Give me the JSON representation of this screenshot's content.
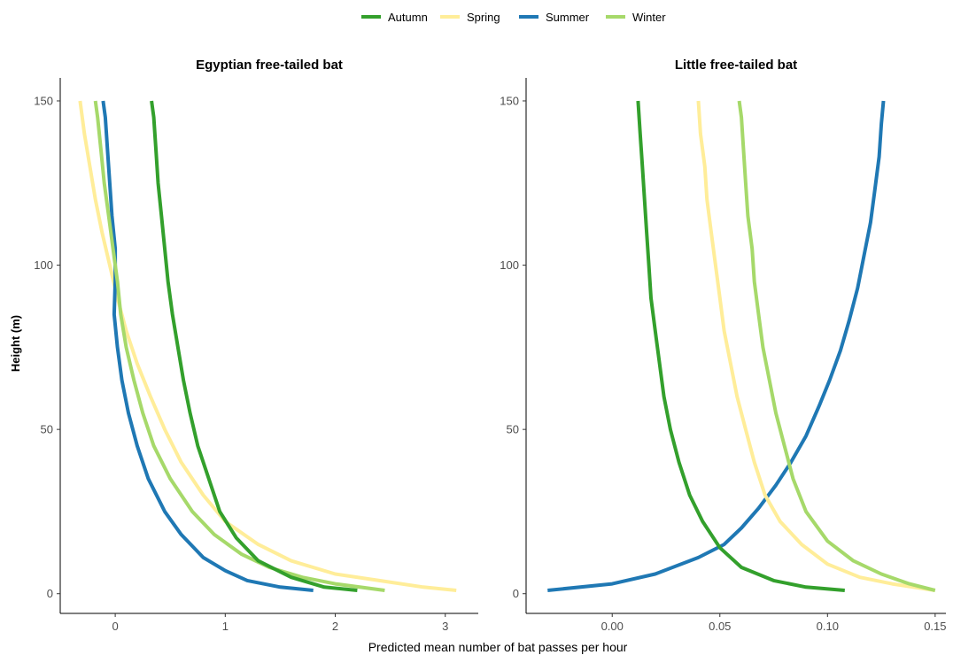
{
  "chart_data": {
    "type": "line",
    "xlabel": "Predicted mean number of bat passes per hour",
    "ylabel": "Height (m)",
    "legend": {
      "position": "top",
      "entries": [
        {
          "name": "Autumn",
          "color": "#33a02c"
        },
        {
          "name": "Spring",
          "color": "#ffed99"
        },
        {
          "name": "Summer",
          "color": "#1f78b4"
        },
        {
          "name": "Winter",
          "color": "#a6d96a"
        }
      ]
    },
    "grid": false,
    "panels": [
      {
        "title": "Egyptian free-tailed bat",
        "xlim": [
          -0.5,
          3.3
        ],
        "ylim": [
          -6,
          157
        ],
        "xticks": [
          0,
          1,
          2,
          3
        ],
        "xtick_labels": [
          "0",
          "1",
          "2",
          "3"
        ],
        "yticks": [
          0,
          50,
          100,
          150
        ],
        "ytick_labels": [
          "0",
          "50",
          "100",
          "150"
        ],
        "series": [
          {
            "name": "Spring",
            "color": "#ffed99",
            "points": [
              [
                3.1,
                1
              ],
              [
                2.8,
                2
              ],
              [
                2.4,
                4
              ],
              [
                2.0,
                6
              ],
              [
                1.6,
                10
              ],
              [
                1.3,
                15
              ],
              [
                1.0,
                22
              ],
              [
                0.8,
                30
              ],
              [
                0.6,
                40
              ],
              [
                0.45,
                50
              ],
              [
                0.32,
                60
              ],
              [
                0.2,
                70
              ],
              [
                0.1,
                80
              ],
              [
                0.02,
                90
              ],
              [
                -0.05,
                100
              ],
              [
                -0.12,
                110
              ],
              [
                -0.18,
                120
              ],
              [
                -0.23,
                130
              ],
              [
                -0.28,
                140
              ],
              [
                -0.32,
                150
              ]
            ]
          },
          {
            "name": "Summer",
            "color": "#1f78b4",
            "points": [
              [
                1.8,
                1
              ],
              [
                1.5,
                2
              ],
              [
                1.2,
                4
              ],
              [
                1.0,
                7
              ],
              [
                0.8,
                11
              ],
              [
                0.6,
                18
              ],
              [
                0.45,
                25
              ],
              [
                0.3,
                35
              ],
              [
                0.2,
                45
              ],
              [
                0.12,
                55
              ],
              [
                0.06,
                65
              ],
              [
                0.02,
                75
              ],
              [
                -0.01,
                85
              ],
              [
                0.0,
                95
              ],
              [
                0.0,
                105
              ],
              [
                -0.03,
                115
              ],
              [
                -0.05,
                125
              ],
              [
                -0.07,
                135
              ],
              [
                -0.09,
                145
              ],
              [
                -0.11,
                150
              ]
            ]
          },
          {
            "name": "Winter",
            "color": "#a6d96a",
            "points": [
              [
                2.45,
                1
              ],
              [
                2.0,
                3
              ],
              [
                1.7,
                5
              ],
              [
                1.4,
                8
              ],
              [
                1.15,
                12
              ],
              [
                0.9,
                18
              ],
              [
                0.7,
                25
              ],
              [
                0.5,
                35
              ],
              [
                0.35,
                45
              ],
              [
                0.25,
                55
              ],
              [
                0.17,
                65
              ],
              [
                0.1,
                75
              ],
              [
                0.05,
                85
              ],
              [
                0.02,
                95
              ],
              [
                -0.02,
                105
              ],
              [
                -0.06,
                115
              ],
              [
                -0.1,
                125
              ],
              [
                -0.13,
                135
              ],
              [
                -0.16,
                145
              ],
              [
                -0.18,
                150
              ]
            ]
          },
          {
            "name": "Autumn",
            "color": "#33a02c",
            "points": [
              [
                2.2,
                1
              ],
              [
                1.9,
                2
              ],
              [
                1.6,
                5
              ],
              [
                1.3,
                10
              ],
              [
                1.1,
                17
              ],
              [
                0.95,
                25
              ],
              [
                0.85,
                35
              ],
              [
                0.75,
                45
              ],
              [
                0.68,
                55
              ],
              [
                0.62,
                65
              ],
              [
                0.57,
                75
              ],
              [
                0.52,
                85
              ],
              [
                0.48,
                95
              ],
              [
                0.45,
                105
              ],
              [
                0.42,
                115
              ],
              [
                0.39,
                125
              ],
              [
                0.37,
                135
              ],
              [
                0.35,
                145
              ],
              [
                0.33,
                150
              ]
            ]
          }
        ]
      },
      {
        "title": "Little free-tailed bat",
        "xlim": [
          -0.04,
          0.155
        ],
        "ylim": [
          -6,
          157
        ],
        "xticks": [
          0.0,
          0.05,
          0.1,
          0.15
        ],
        "xtick_labels": [
          "0.00",
          "0.05",
          "0.10",
          "0.15"
        ],
        "yticks": [
          0,
          50,
          100,
          150
        ],
        "ytick_labels": [
          "0",
          "50",
          "100",
          "150"
        ],
        "series": [
          {
            "name": "Summer",
            "color": "#1f78b4",
            "points": [
              [
                -0.03,
                1
              ],
              [
                0.0,
                3
              ],
              [
                0.02,
                6
              ],
              [
                0.04,
                11
              ],
              [
                0.052,
                15
              ],
              [
                0.06,
                20
              ],
              [
                0.068,
                26
              ],
              [
                0.076,
                33
              ],
              [
                0.083,
                40
              ],
              [
                0.09,
                48
              ],
              [
                0.096,
                57
              ],
              [
                0.101,
                65
              ],
              [
                0.106,
                74
              ],
              [
                0.11,
                83
              ],
              [
                0.114,
                93
              ],
              [
                0.117,
                103
              ],
              [
                0.12,
                113
              ],
              [
                0.122,
                123
              ],
              [
                0.124,
                133
              ],
              [
                0.125,
                143
              ],
              [
                0.126,
                150
              ]
            ]
          },
          {
            "name": "Spring",
            "color": "#ffed99",
            "points": [
              [
                0.15,
                1
              ],
              [
                0.13,
                3
              ],
              [
                0.115,
                5
              ],
              [
                0.1,
                9
              ],
              [
                0.088,
                15
              ],
              [
                0.078,
                22
              ],
              [
                0.071,
                30
              ],
              [
                0.066,
                40
              ],
              [
                0.062,
                50
              ],
              [
                0.058,
                60
              ],
              [
                0.055,
                70
              ],
              [
                0.052,
                80
              ],
              [
                0.05,
                90
              ],
              [
                0.048,
                100
              ],
              [
                0.046,
                110
              ],
              [
                0.044,
                120
              ],
              [
                0.043,
                130
              ],
              [
                0.041,
                140
              ],
              [
                0.04,
                150
              ]
            ]
          },
          {
            "name": "Winter",
            "color": "#a6d96a",
            "points": [
              [
                0.15,
                1
              ],
              [
                0.138,
                3
              ],
              [
                0.125,
                6
              ],
              [
                0.112,
                10
              ],
              [
                0.1,
                16
              ],
              [
                0.09,
                25
              ],
              [
                0.084,
                35
              ],
              [
                0.08,
                45
              ],
              [
                0.076,
                55
              ],
              [
                0.073,
                65
              ],
              [
                0.07,
                75
              ],
              [
                0.068,
                85
              ],
              [
                0.066,
                95
              ],
              [
                0.065,
                105
              ],
              [
                0.063,
                115
              ],
              [
                0.062,
                125
              ],
              [
                0.061,
                135
              ],
              [
                0.06,
                145
              ],
              [
                0.059,
                150
              ]
            ]
          },
          {
            "name": "Autumn",
            "color": "#33a02c",
            "points": [
              [
                0.108,
                1
              ],
              [
                0.09,
                2
              ],
              [
                0.075,
                4
              ],
              [
                0.06,
                8
              ],
              [
                0.05,
                14
              ],
              [
                0.042,
                22
              ],
              [
                0.036,
                30
              ],
              [
                0.031,
                40
              ],
              [
                0.027,
                50
              ],
              [
                0.024,
                60
              ],
              [
                0.022,
                70
              ],
              [
                0.02,
                80
              ],
              [
                0.018,
                90
              ],
              [
                0.017,
                100
              ],
              [
                0.016,
                110
              ],
              [
                0.015,
                120
              ],
              [
                0.014,
                130
              ],
              [
                0.013,
                140
              ],
              [
                0.012,
                150
              ]
            ]
          }
        ]
      }
    ]
  }
}
